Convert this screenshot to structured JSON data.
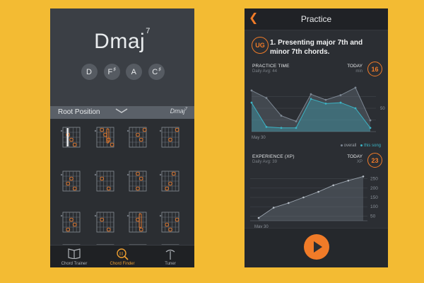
{
  "left_phone": {
    "chord": {
      "root": "Dmaj",
      "ext": "7"
    },
    "notes": [
      {
        "name": "D",
        "acc": ""
      },
      {
        "name": "F",
        "acc": "♯"
      },
      {
        "name": "A",
        "acc": ""
      },
      {
        "name": "C",
        "acc": "♯"
      }
    ],
    "position_bar": {
      "label": "Root Position",
      "chord_root": "Dmaj",
      "chord_ext": "7"
    },
    "tabs": [
      {
        "label": "Chord Trainer",
        "icon": "book-icon"
      },
      {
        "label": "Chord Finder",
        "icon": "magnifier-icon"
      },
      {
        "label": "Tuner",
        "icon": "tuning-fork-icon"
      }
    ]
  },
  "right_phone": {
    "title": "Practice",
    "logo": "UG",
    "lesson_title": "1. Presenting major 7th and minor 7th chords.",
    "practice": {
      "title": "PRACTICE TIME",
      "sub": "Daily Avg: 44",
      "today_label": "TODAY",
      "unit": "min",
      "today_value": "16"
    },
    "legend": {
      "overall": "overall",
      "song": "this song"
    },
    "experience": {
      "title": "EXPERIENCE (XP)",
      "sub": "Daily Avg: 39",
      "today_label": "TODAY",
      "unit": "XP",
      "today_value": "23"
    },
    "colors": {
      "accent": "#f07b28",
      "teal": "#3bb3c4",
      "bg": "#f3bb33"
    }
  },
  "chart_data": [
    {
      "type": "line",
      "title": "PRACTICE TIME",
      "x": [
        "May 30",
        "",
        "",
        "",
        "",
        "",
        "",
        "",
        ""
      ],
      "ytick": "50",
      "series": [
        {
          "name": "overall",
          "values": [
            88,
            72,
            34,
            22,
            80,
            68,
            78,
            94,
            24
          ]
        },
        {
          "name": "this song",
          "values": [
            62,
            10,
            8,
            8,
            70,
            60,
            62,
            50,
            8
          ]
        }
      ]
    },
    {
      "type": "area",
      "title": "EXPERIENCE (XP)",
      "x": [
        "May 30",
        "",
        "",
        "",
        "",
        "",
        "",
        ""
      ],
      "yticks": [
        "250",
        "200",
        "150",
        "100",
        "50"
      ],
      "ylim": [
        25,
        275
      ],
      "series": [
        {
          "values": [
            40,
            95,
            120,
            150,
            180,
            215,
            240,
            262
          ]
        }
      ]
    }
  ]
}
